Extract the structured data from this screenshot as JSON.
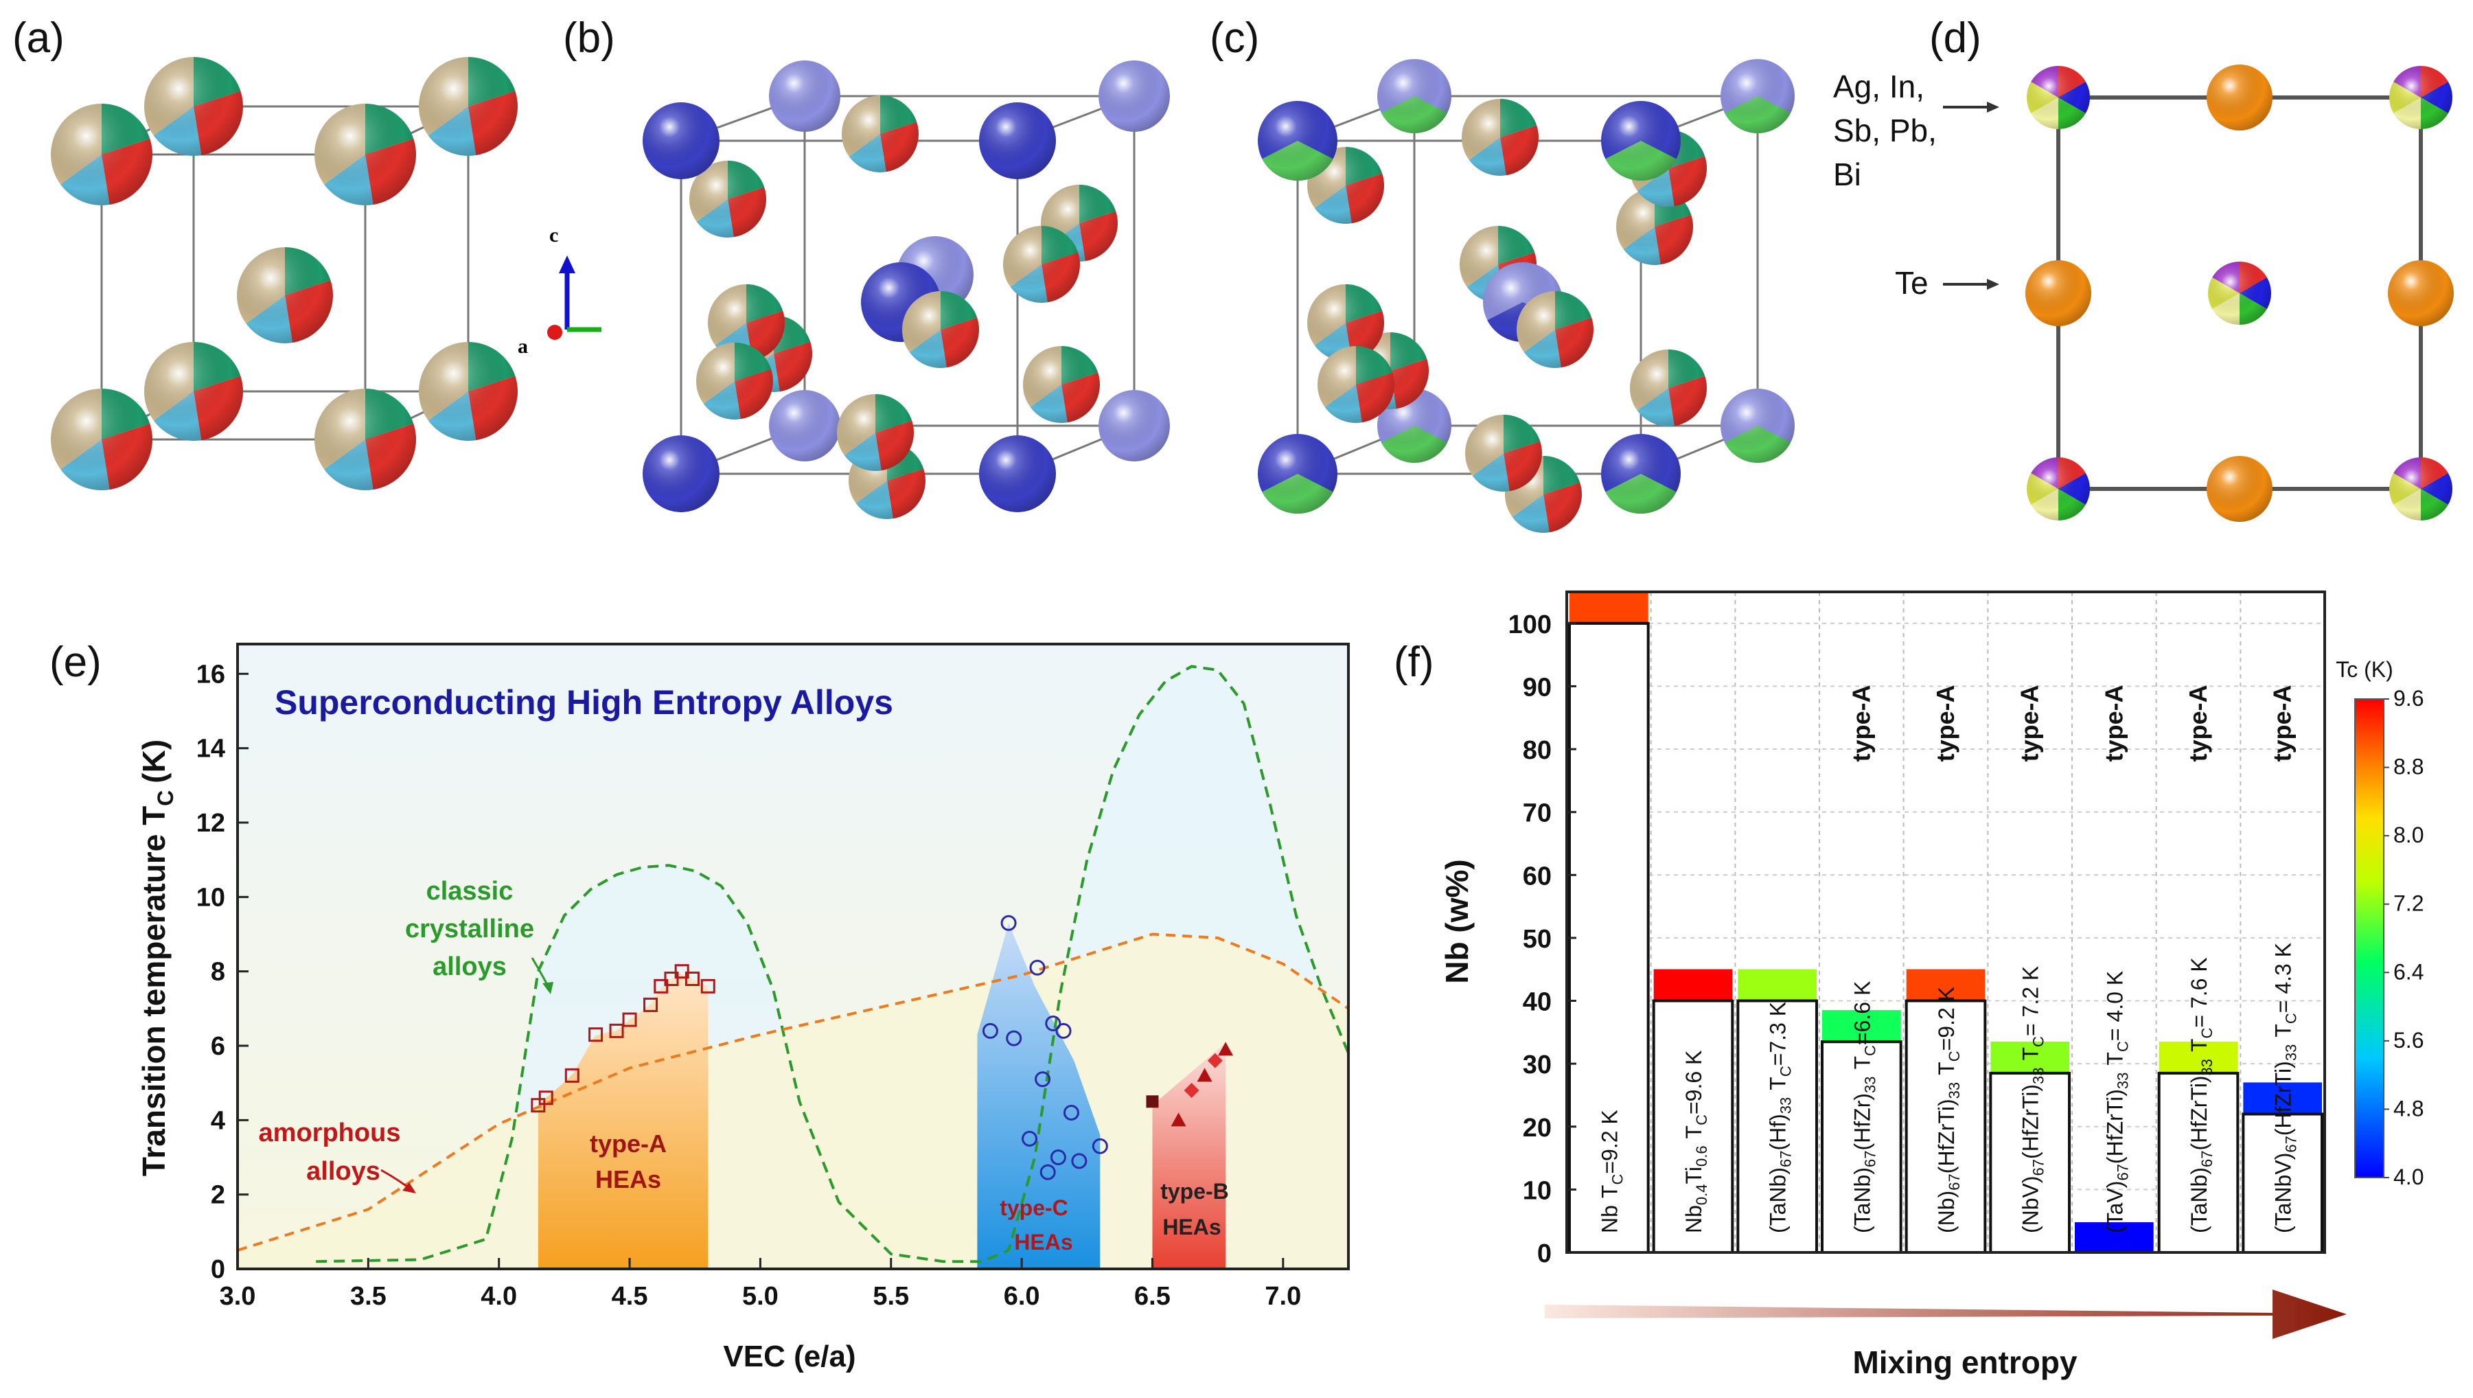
{
  "panels": {
    "a": "(a)",
    "b": "(b)",
    "c": "(c)",
    "d": "(d)",
    "e": "(e)",
    "f": "(f)"
  },
  "crystal": {
    "axis_c": "c",
    "axis_a": "a",
    "site_label_1": "Ag, In,",
    "site_label_2": "Sb, Pb,",
    "site_label_3": "Bi",
    "site_label_te": "Te",
    "colors": {
      "mixed_beige": "#c8b48a",
      "mixed_green": "#1f9a6a",
      "mixed_red": "#e0302a",
      "mixed_cyan": "#5ab8d8",
      "blue_atom": "#3a3fc4",
      "light_blue_atom": "#8c8fe0",
      "green_atom": "#55c85a",
      "orange_atom": "#f08a10"
    }
  },
  "chart_data": [
    {
      "type": "line",
      "title": "Superconducting High Entropy Alloys",
      "xlabel": "VEC (e/a)",
      "ylabel": "Transition temperature T",
      "ylabel_sub": "C",
      "ylabel_unit": "(K)",
      "xlim": [
        3.0,
        7.25
      ],
      "ylim": [
        0,
        16.8
      ],
      "x_ticks": [
        "3.0",
        "3.5",
        "4.0",
        "4.5",
        "5.0",
        "5.5",
        "6.0",
        "6.5",
        "7.0"
      ],
      "y_ticks": [
        "0",
        "2",
        "4",
        "6",
        "8",
        "10",
        "12",
        "14",
        "16"
      ],
      "annotations": {
        "classic_1": "classic",
        "classic_2": "crystalline",
        "classic_3": "alloys",
        "amorph_1": "amorphous",
        "amorph_2": "alloys",
        "typeA_1": "type-A",
        "typeA_2": "HEAs",
        "typeC_1": "type-C",
        "typeC_2": "HEAs",
        "typeB_1": "type-B",
        "typeB_2": "HEAs"
      },
      "series": [
        {
          "kind": "crystalline-curve",
          "color": "#2a9a2a",
          "x": [
            3.3,
            3.7,
            3.95,
            4.05,
            4.15,
            4.25,
            4.35,
            4.45,
            4.55,
            4.65,
            4.75,
            4.85,
            4.95,
            5.05,
            5.15,
            5.3,
            5.5,
            5.7,
            5.85,
            5.95,
            6.05,
            6.15,
            6.25,
            6.35,
            6.45,
            6.55,
            6.65,
            6.75,
            6.85,
            6.95,
            7.05,
            7.15,
            7.25
          ],
          "y": [
            0.2,
            0.25,
            0.8,
            3.5,
            8.0,
            9.5,
            10.2,
            10.6,
            10.8,
            10.85,
            10.7,
            10.3,
            9.3,
            7.5,
            4.5,
            1.8,
            0.4,
            0.2,
            0.2,
            0.5,
            3.0,
            7.5,
            11.0,
            13.4,
            14.9,
            15.8,
            16.2,
            16.1,
            15.2,
            12.5,
            9.5,
            7.5,
            5.8
          ]
        },
        {
          "kind": "amorphous-curve",
          "color": "#ee7a20",
          "x": [
            3.0,
            3.5,
            4.0,
            4.5,
            5.0,
            5.5,
            6.0,
            6.5,
            6.75,
            7.0,
            7.25
          ],
          "y": [
            0.5,
            1.6,
            3.9,
            5.4,
            6.3,
            7.1,
            7.9,
            9.0,
            8.9,
            8.2,
            7.0
          ]
        },
        {
          "kind": "typeA-points",
          "marker": "open-square",
          "color": "#b01818",
          "x": [
            4.15,
            4.18,
            4.28,
            4.37,
            4.45,
            4.5,
            4.58,
            4.62,
            4.66,
            4.7,
            4.74,
            4.8
          ],
          "y": [
            4.4,
            4.6,
            5.2,
            6.3,
            6.4,
            6.7,
            7.1,
            7.6,
            7.8,
            8.0,
            7.8,
            7.6
          ]
        },
        {
          "kind": "typeC-points",
          "marker": "open-circle",
          "color": "#2a2aa8",
          "x": [
            5.88,
            5.95,
            5.97,
            6.03,
            6.06,
            6.1,
            6.12,
            6.14,
            6.16,
            6.19,
            6.22,
            6.3,
            6.08
          ],
          "y": [
            6.4,
            9.3,
            6.2,
            3.5,
            8.1,
            2.6,
            6.6,
            3.0,
            6.4,
            4.2,
            2.9,
            3.3,
            5.1
          ]
        },
        {
          "kind": "typeB-points",
          "marker": "filled",
          "color": "#c01818",
          "x": [
            6.5,
            6.6,
            6.65,
            6.7,
            6.74,
            6.78
          ],
          "y": [
            4.5,
            4.0,
            4.8,
            5.2,
            5.6,
            5.9
          ]
        }
      ]
    },
    {
      "type": "bar",
      "ylabel": "Nb (w%)",
      "ylim": [
        0,
        105
      ],
      "y_ticks": [
        "0",
        "10",
        "20",
        "30",
        "40",
        "50",
        "60",
        "70",
        "80",
        "90",
        "100"
      ],
      "xlabel": "Mixing entropy",
      "colorbar": {
        "title": "Tc (K)",
        "ticks": [
          "9.6",
          "8.8",
          "8.0",
          "7.2",
          "6.4",
          "5.6",
          "4.8",
          "4.0"
        ],
        "min": 4.0,
        "max": 9.6
      },
      "type_a_label": "type-A",
      "categories": [
        {
          "main": "Nb",
          "tc": "T",
          "tc_sub": "C",
          "tc_val": "=9.2 K",
          "nb": 100,
          "tc_k": 9.2,
          "typeA": false
        },
        {
          "main": "Nb",
          "s1": "0.4",
          "m2": "Ti",
          "s2": "0.6",
          "tc": "T",
          "tc_sub": "C",
          "tc_val": "=9.6 K",
          "nb": 40,
          "tc_k": 9.6,
          "typeA": false
        },
        {
          "main": "(TaNb)",
          "s1": "67",
          "m2": "(Hf)",
          "s2": "33",
          "tc": "T",
          "tc_sub": "C",
          "tc_val": "=7.3 K",
          "nb": 40,
          "tc_k": 7.3,
          "typeA": false
        },
        {
          "main": "(TaNb)",
          "s1": "67",
          "m2": "(HfZr)",
          "s2": "33",
          "tc": "T",
          "tc_sub": "C",
          "tc_val": "=6.6 K",
          "nb": 33.5,
          "tc_k": 6.6,
          "typeA": true
        },
        {
          "main": "(Nb)",
          "s1": "67",
          "m2": "(HfZrTi)",
          "s2": "33",
          "tc": "T",
          "tc_sub": "C",
          "tc_val": "=9.2 K",
          "nb": 40,
          "tc_k": 9.2,
          "typeA": true
        },
        {
          "main": "(NbV)",
          "s1": "67",
          "m2": "(HfZrTi)",
          "s2": "33",
          "tc": "T",
          "tc_sub": "C",
          "tc_val": "= 7.2 K",
          "nb": 28.5,
          "tc_k": 7.2,
          "typeA": true
        },
        {
          "main": "(TaV)",
          "s1": "67",
          "m2": "(HfZrTi)",
          "s2": "33",
          "tc": "T",
          "tc_sub": "C",
          "tc_val": "= 4.0 K",
          "nb": 0,
          "tc_k": 4.0,
          "typeA": true
        },
        {
          "main": "(TaNb)",
          "s1": "67",
          "m2": "(HfZrTi)",
          "s2": "33",
          "tc": "T",
          "tc_sub": "C",
          "tc_val": "= 7.6 K",
          "nb": 28.5,
          "tc_k": 7.6,
          "typeA": true
        },
        {
          "main": "(TaNbV)",
          "s1": "67",
          "m2": "(HfZrTi)",
          "s2": "33",
          "tc": "T",
          "tc_sub": "C",
          "tc_val": "= 4.3 K",
          "nb": 22,
          "tc_k": 4.3,
          "typeA": true
        }
      ]
    }
  ]
}
